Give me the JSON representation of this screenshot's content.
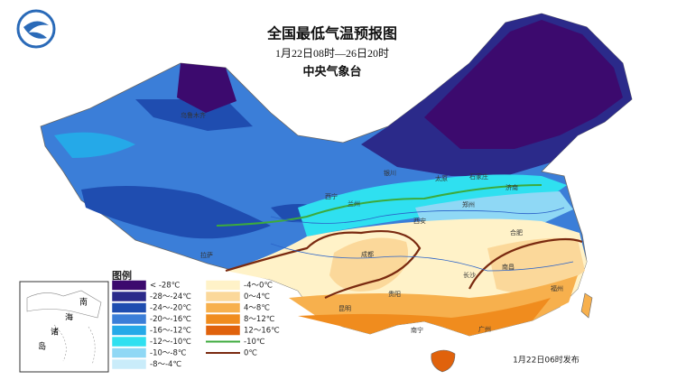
{
  "header": {
    "title": "全国最低气温预报图",
    "period": "1月22日08时—26日20时",
    "issuer": "中央气象台"
  },
  "legend": {
    "title": "图例",
    "items": [
      {
        "label": "< -28℃",
        "color": "#3c0a6e"
      },
      {
        "label": "-28～-24℃",
        "color": "#2b2a8a"
      },
      {
        "label": "-24～-20℃",
        "color": "#1f4db0"
      },
      {
        "label": "-20～-16℃",
        "color": "#3b7ed8"
      },
      {
        "label": "-16～-12℃",
        "color": "#25a9e8"
      },
      {
        "label": "-12～-10℃",
        "color": "#2fe0f0"
      },
      {
        "label": "-10～-8℃",
        "color": "#8fd8f5"
      },
      {
        "label": "-8～-4℃",
        "color": "#c9ecfa"
      },
      {
        "label": "-4～0℃",
        "color": "#fff2c8"
      },
      {
        "label": "0～4℃",
        "color": "#fbd89a"
      },
      {
        "label": "4～8℃",
        "color": "#f7b04d"
      },
      {
        "label": "8～12℃",
        "color": "#f08c1e"
      },
      {
        "label": "12～16℃",
        "color": "#e0620c"
      }
    ],
    "lines": [
      {
        "label": "-10℃",
        "color": "#3caa3c"
      },
      {
        "label": "0℃",
        "color": "#7a2a10"
      }
    ]
  },
  "inset": {
    "chars": [
      "南",
      "海",
      "诸",
      "岛"
    ]
  },
  "cities": [
    "乌鲁木齐",
    "拉萨",
    "西宁",
    "兰州",
    "银川",
    "西安",
    "成都",
    "太原",
    "石家庄",
    "郑州",
    "济南",
    "合肥",
    "长沙",
    "南昌",
    "贵阳",
    "昆明",
    "南宁",
    "广州",
    "福州"
  ],
  "footer": {
    "issued": "1月22日06时发布"
  }
}
